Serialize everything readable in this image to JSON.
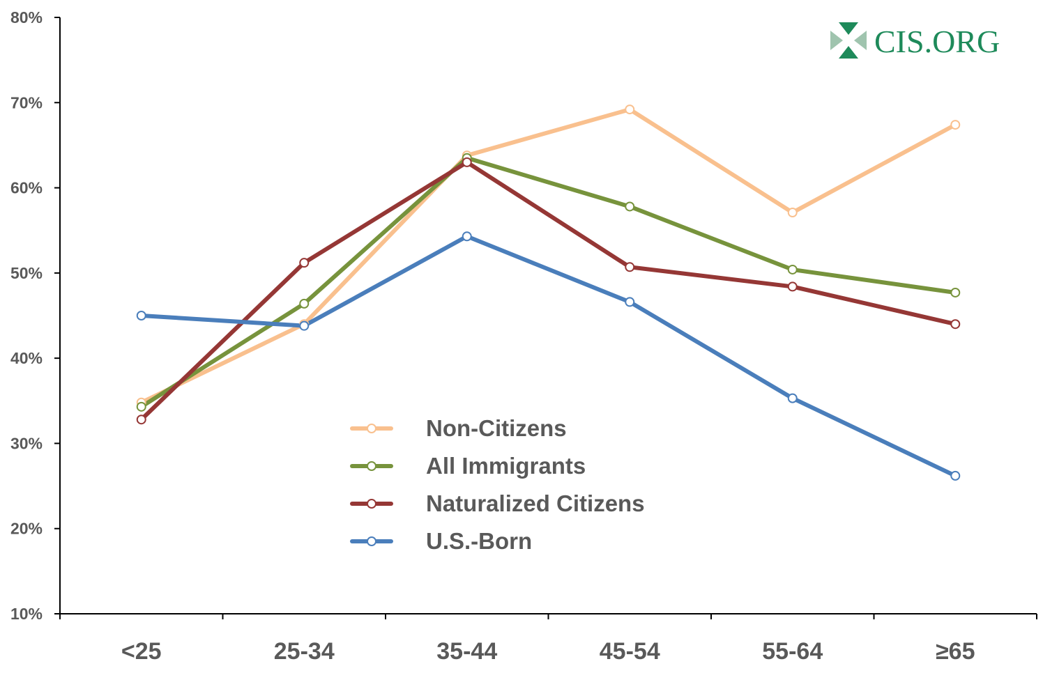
{
  "brand": {
    "text": "CIS.ORG",
    "icon": "cis-logo-icon",
    "color": "#1e8a5a"
  },
  "chart_data": {
    "type": "line",
    "title": "",
    "xlabel": "",
    "ylabel": "",
    "categories": [
      "<25",
      "25-34",
      "35-44",
      "45-54",
      "55-64",
      "≥65"
    ],
    "ylim": [
      10,
      80
    ],
    "yticks": [
      "10%",
      "20%",
      "30%",
      "40%",
      "50%",
      "60%",
      "70%",
      "80%"
    ],
    "grid": false,
    "legend_position": "bottom-center",
    "series": [
      {
        "name": "Non-Citizens",
        "color": "#f9c08e",
        "values": [
          34.8,
          44.0,
          63.8,
          69.2,
          57.1,
          67.4
        ]
      },
      {
        "name": "All Immigrants",
        "color": "#77933c",
        "values": [
          34.3,
          46.4,
          63.5,
          57.8,
          50.4,
          47.7
        ]
      },
      {
        "name": "Naturalized Citizens",
        "color": "#953735",
        "values": [
          32.8,
          51.2,
          63.0,
          50.7,
          48.4,
          44.0
        ]
      },
      {
        "name": "U.S.-Born",
        "color": "#4a7ebb",
        "values": [
          45.0,
          43.8,
          54.3,
          46.6,
          35.3,
          26.2
        ]
      }
    ]
  }
}
